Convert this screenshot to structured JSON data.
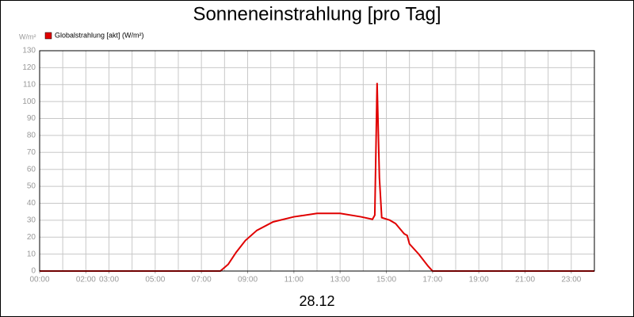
{
  "chart_data": {
    "type": "line",
    "title": "Sonneneinstrahlung [pro Tag]",
    "y_label": "W/m²",
    "x_label": "28.12",
    "x": [
      0,
      7.5,
      7.82,
      8.16,
      8.5,
      8.9,
      9.4,
      10.1,
      11,
      12,
      13,
      13.9,
      14.4,
      14.5,
      14.6,
      14.7,
      14.8,
      15.15,
      15.4,
      15.77,
      15.9,
      16,
      16.4,
      16.8,
      17,
      24
    ],
    "series": [
      {
        "name": "Globalstrahlung [akt] (W/m²)",
        "color": "#e00000",
        "values": [
          0,
          0,
          0,
          4,
          11,
          18,
          24,
          29,
          32,
          34,
          34,
          32,
          30.5,
          33,
          111,
          55,
          31.5,
          30,
          28,
          22,
          21,
          16,
          10,
          3,
          0,
          0
        ]
      }
    ],
    "xlim": [
      0,
      24
    ],
    "xticks": [
      {
        "value": 0,
        "label": "00:00"
      },
      {
        "value": 2,
        "label": "02:00"
      },
      {
        "value": 3,
        "label": "03:00"
      },
      {
        "value": 5,
        "label": "05:00"
      },
      {
        "value": 7,
        "label": "07:00"
      },
      {
        "value": 9,
        "label": "09:00"
      },
      {
        "value": 11,
        "label": "11:00"
      },
      {
        "value": 13,
        "label": "13:00"
      },
      {
        "value": 15,
        "label": "15:00"
      },
      {
        "value": 17,
        "label": "17:00"
      },
      {
        "value": 19,
        "label": "19:00"
      },
      {
        "value": 21,
        "label": "21:00"
      },
      {
        "value": 23,
        "label": "23:00"
      }
    ],
    "xgrid": [
      0,
      1,
      2,
      3,
      4,
      5,
      6,
      7,
      8,
      9,
      10,
      11,
      12,
      13,
      14,
      15,
      16,
      17,
      18,
      19,
      20,
      21,
      22,
      23,
      24
    ],
    "ylim": [
      0,
      130
    ],
    "yticks": [
      0,
      10,
      20,
      30,
      40,
      50,
      60,
      70,
      80,
      90,
      100,
      110,
      120,
      130
    ],
    "grid": true
  }
}
